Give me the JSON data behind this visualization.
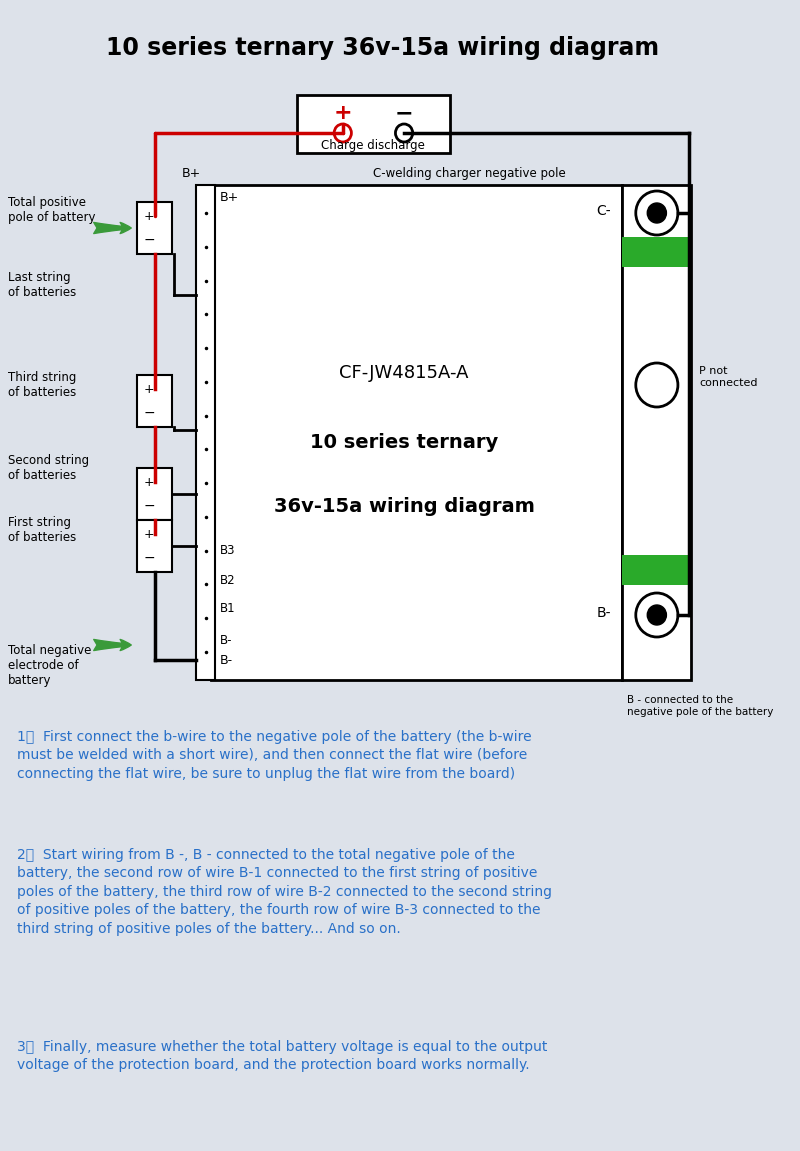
{
  "title": "10 series ternary 36v-15a wiring diagram",
  "title_fontsize": 17,
  "title_fontweight": "bold",
  "bg_color": "#dde2ea",
  "text_color_blue": "#2970c8",
  "text_color_black": "#000000",
  "green_color": "#3a9a3a",
  "pcb_label_line1": "CF-JW4815A-A",
  "pcb_label_line2": "10 series ternary",
  "pcb_label_line3": "36v-15a wiring diagram",
  "instruction1": "1、  First connect the b-wire to the negative pole of the battery (the b-wire\nmust be welded with a short wire), and then connect the flat wire (before\nconnecting the flat wire, be sure to unplug the flat wire from the board)",
  "instruction2": "2、  Start wiring from B -, B - connected to the total negative pole of the\nbattery, the second row of wire B-1 connected to the first string of positive\npoles of the battery, the third row of wire B-2 connected to the second string\nof positive poles of the battery, the fourth row of wire B-3 connected to the\nthird string of positive poles of the battery... And so on.",
  "instruction3": "3、  Finally, measure whether the total battery voltage is equal to the output\nvoltage of the protection board, and the protection board works normally."
}
